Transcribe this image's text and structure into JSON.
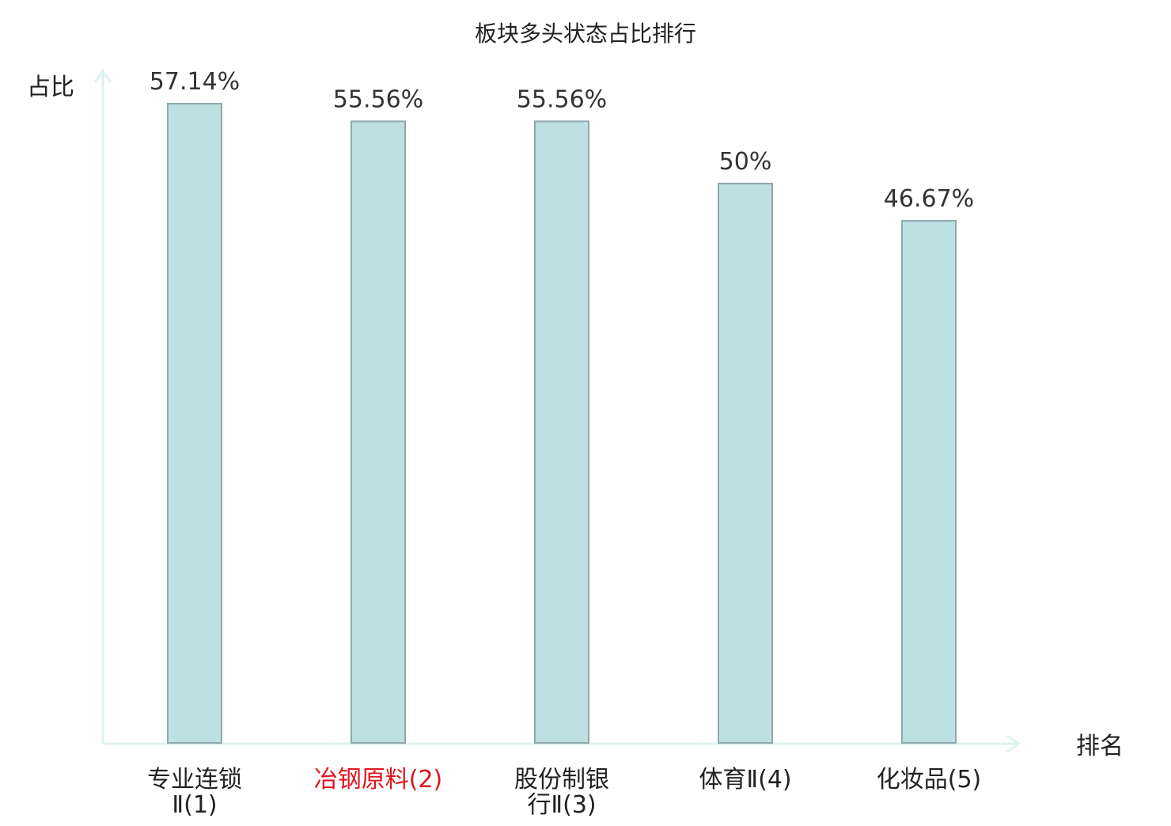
{
  "chart_data": {
    "type": "bar",
    "title": "板块多头状态占比排行",
    "ylabel": "占比",
    "xlabel": "排名",
    "ylim": [
      0,
      60
    ],
    "grid": false,
    "categories": [
      {
        "lines": [
          "专业连锁",
          "Ⅱ(1)"
        ],
        "highlight": false
      },
      {
        "lines": [
          "冶钢原料(2)"
        ],
        "highlight": true
      },
      {
        "lines": [
          "股份制银",
          "行Ⅱ(3)"
        ],
        "highlight": false
      },
      {
        "lines": [
          "体育Ⅱ(4)"
        ],
        "highlight": false
      },
      {
        "lines": [
          "化妆品(5)"
        ],
        "highlight": false
      }
    ],
    "values": [
      57.14,
      55.56,
      55.56,
      50,
      46.67
    ],
    "value_labels": [
      "57.14%",
      "55.56%",
      "55.56%",
      "50%",
      "46.67%"
    ]
  },
  "colors": {
    "bar_fill": "#bde0e2",
    "bar_stroke": "#8fa9ab",
    "axis": "#e0f2f0",
    "text": "#222222",
    "value_text": "#333333",
    "highlight_text": "#e0141e"
  }
}
